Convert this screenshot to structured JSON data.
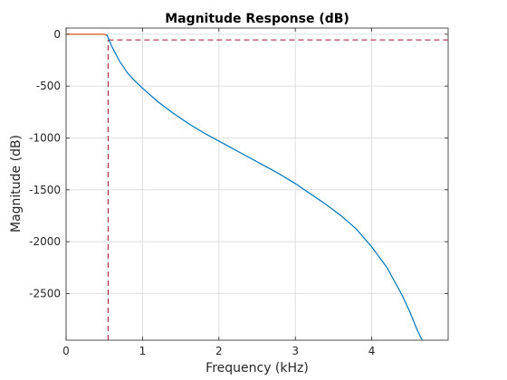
{
  "chart_data": {
    "type": "line",
    "title": "Magnitude Response (dB)",
    "xlabel": "Frequency (kHz)",
    "ylabel": "Magnitude (dB)",
    "xlim": [
      0,
      5
    ],
    "ylim": [
      -2950,
      60
    ],
    "grid": true,
    "x_ticks": [
      0,
      1,
      2,
      3,
      4
    ],
    "x_tick_labels": [
      "0",
      "1",
      "2",
      "3",
      "4"
    ],
    "y_ticks": [
      0,
      -500,
      -1000,
      -1500,
      -2000,
      -2500
    ],
    "y_tick_labels": [
      "0",
      "-500",
      "-1000",
      "-1500",
      "-2000",
      "-2500"
    ],
    "colors": {
      "response": "#0072BD",
      "passband": "#D95319",
      "mask": "#A2142F",
      "grid": "#dfdfdf",
      "axes": "#262626"
    },
    "series": [
      {
        "x": [
          0.53,
          0.6,
          0.7,
          0.8,
          0.9,
          1.0,
          1.2,
          1.4,
          1.6,
          1.8,
          2.0,
          2.2,
          2.4,
          2.6,
          2.8,
          3.0,
          3.2,
          3.4,
          3.6,
          3.8,
          4.0,
          4.2,
          4.4,
          4.5,
          4.6,
          4.66
        ],
        "values": [
          0,
          -120,
          -260,
          -370,
          -450,
          -520,
          -650,
          -760,
          -860,
          -950,
          -1030,
          -1110,
          -1190,
          -1270,
          -1350,
          -1440,
          -1540,
          -1640,
          -1750,
          -1880,
          -2050,
          -2250,
          -2520,
          -2680,
          -2860,
          -2960
        ]
      },
      {
        "x": [
          0,
          0.5,
          0.53
        ],
        "values": [
          0,
          0,
          -10
        ]
      }
    ],
    "reference_lines": {
      "vertical_x": 0.55,
      "horizontal_y": -55
    }
  }
}
